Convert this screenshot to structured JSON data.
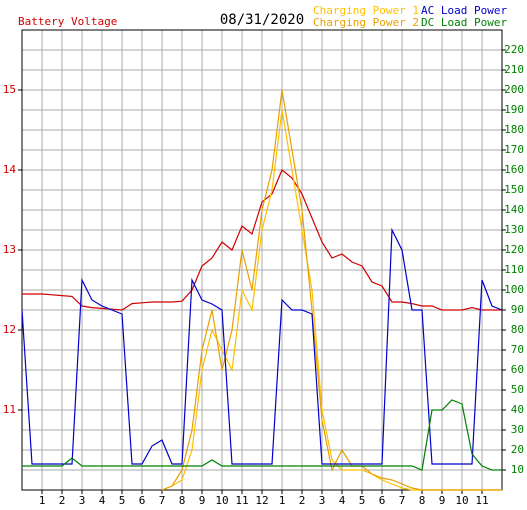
{
  "chart_data": {
    "type": "line",
    "title": "08/31/2020",
    "ylabel": "Battery Voltage",
    "x": [
      0,
      0.5,
      1,
      1.5,
      2,
      2.5,
      3,
      3.5,
      4,
      4.5,
      5,
      5.5,
      6,
      6.5,
      7,
      7.5,
      8,
      8.5,
      9,
      9.5,
      10,
      10.5,
      11,
      11.5,
      12,
      12.5,
      13,
      13.5,
      14,
      14.5,
      15,
      15.5,
      16,
      16.5,
      17,
      17.5,
      18,
      18.5,
      19,
      19.5,
      20,
      20.5,
      21,
      21.5,
      22,
      22.5,
      23,
      23.5,
      24
    ],
    "xlim": [
      0,
      24
    ],
    "xticks": [
      1,
      2,
      3,
      4,
      5,
      6,
      7,
      8,
      9,
      10,
      11,
      12,
      {
        "value": 13,
        "label": "1"
      },
      {
        "value": 14,
        "label": "2"
      },
      {
        "value": 15,
        "label": "3"
      },
      {
        "value": 16,
        "label": "4"
      },
      {
        "value": 17,
        "label": "5"
      },
      {
        "value": 18,
        "label": "6"
      },
      {
        "value": 19,
        "label": "7"
      },
      {
        "value": 20,
        "label": "8"
      },
      {
        "value": 21,
        "label": "9"
      },
      {
        "value": 22,
        "label": "10"
      },
      {
        "value": 23,
        "label": "11"
      }
    ],
    "ylim": [
      10,
      15.75
    ],
    "yticks": [
      11,
      12,
      13,
      14,
      15
    ],
    "y2lim": [
      0,
      230
    ],
    "y2ticks": [
      10,
      20,
      30,
      40,
      50,
      60,
      70,
      80,
      90,
      100,
      110,
      120,
      130,
      140,
      150,
      160,
      170,
      180,
      190,
      200,
      210,
      220
    ],
    "grid": true,
    "series": [
      {
        "name": "Battery Voltage",
        "color": "#d00000",
        "values": [
          12.45,
          12.45,
          12.45,
          12.44,
          12.43,
          12.42,
          12.3,
          12.28,
          12.27,
          12.26,
          12.25,
          12.33,
          12.34,
          12.35,
          12.35,
          12.35,
          12.36,
          12.5,
          12.8,
          12.9,
          13.1,
          13.0,
          13.3,
          13.2,
          13.6,
          13.7,
          14.0,
          13.9,
          13.7,
          13.4,
          13.1,
          12.9,
          12.95,
          12.85,
          12.8,
          12.6,
          12.55,
          12.35,
          12.35,
          12.33,
          12.3,
          12.3,
          12.25,
          12.25,
          12.25,
          12.28,
          12.25,
          12.25,
          12.25
        ]
      },
      {
        "name": "Charging Power 1",
        "color": "#ffc000",
        "axis": "y2",
        "values": [
          null,
          null,
          null,
          null,
          null,
          null,
          null,
          null,
          null,
          null,
          null,
          null,
          null,
          null,
          0,
          2,
          5,
          20,
          60,
          80,
          70,
          60,
          100,
          90,
          130,
          150,
          190,
          160,
          130,
          100,
          40,
          15,
          10,
          10,
          10,
          8,
          5,
          3,
          1,
          0,
          0,
          0,
          0,
          0,
          0,
          0,
          0,
          0,
          0
        ]
      },
      {
        "name": "Charging Power 2",
        "color": "#e8a000",
        "axis": "y2",
        "values": [
          null,
          null,
          null,
          null,
          null,
          null,
          null,
          null,
          null,
          null,
          null,
          null,
          null,
          null,
          0,
          2,
          10,
          30,
          70,
          90,
          60,
          80,
          120,
          100,
          140,
          160,
          200,
          170,
          140,
          90,
          35,
          10,
          20,
          12,
          12,
          8,
          6,
          5,
          3,
          1,
          0,
          0,
          0,
          0,
          0,
          0,
          0,
          0,
          0
        ]
      },
      {
        "name": "AC Load Power",
        "color": "#0000cc",
        "axis": "y2",
        "values": [
          90,
          13,
          13,
          13,
          13,
          13,
          105,
          95,
          92,
          90,
          88,
          13,
          13,
          22,
          25,
          13,
          13,
          105,
          95,
          93,
          90,
          13,
          13,
          13,
          13,
          13,
          95,
          90,
          90,
          88,
          13,
          13,
          13,
          13,
          13,
          13,
          13,
          130,
          120,
          90,
          90,
          13,
          13,
          13,
          13,
          13,
          105,
          92,
          90
        ]
      },
      {
        "name": "DC Load Power",
        "color": "#008000",
        "axis": "y2",
        "values": [
          12,
          12,
          12,
          12,
          12,
          16,
          12,
          12,
          12,
          12,
          12,
          12,
          12,
          12,
          12,
          12,
          12,
          12,
          12,
          15,
          12,
          12,
          12,
          12,
          12,
          12,
          12,
          12,
          12,
          12,
          12,
          12,
          12,
          12,
          12,
          12,
          12,
          12,
          12,
          12,
          10,
          40,
          40,
          45,
          43,
          18,
          12,
          10,
          10
        ]
      }
    ]
  }
}
